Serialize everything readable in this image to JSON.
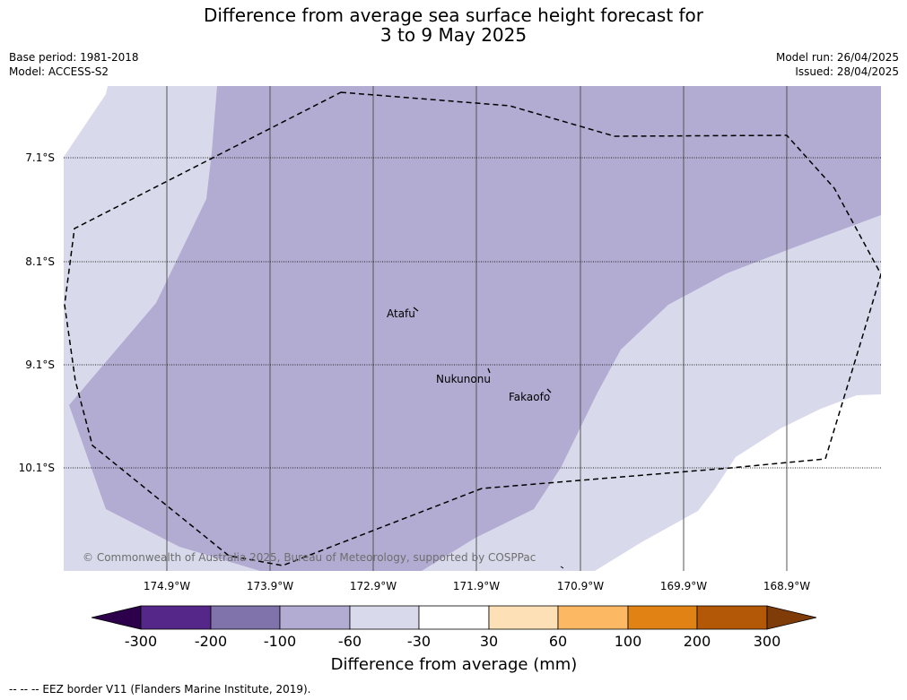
{
  "title": {
    "line1": "Difference from average sea surface height forecast for",
    "line2": "3 to 9 May 2025"
  },
  "meta": {
    "base_period": "Base period: 1981-2018",
    "model": "Model: ACCESS-S2",
    "model_run": "Model run: 26/04/2025",
    "issued": "Issued: 28/04/2025"
  },
  "map": {
    "lat_labels": [
      "7.1°S",
      "8.1°S",
      "9.1°S",
      "10.1°S"
    ],
    "lon_labels": [
      "174.9°W",
      "173.9°W",
      "172.9°W",
      "171.9°W",
      "170.9°W",
      "169.9°W",
      "168.9°W"
    ],
    "places": [
      {
        "name": "Atafu"
      },
      {
        "name": "Nukunonu"
      },
      {
        "name": "Fakaofo"
      }
    ],
    "copyright": "© Commonwealth of Australia 2025, Bureau of Meteorology, supported by COSPPac"
  },
  "colorbar": {
    "label": "Difference from average (mm)",
    "ticks": [
      "-300",
      "-200",
      "-100",
      "-60",
      "-30",
      "30",
      "60",
      "100",
      "200",
      "300"
    ],
    "colors": [
      "#2d004b",
      "#542788",
      "#8073ac",
      "#b2abd2",
      "#d8daeb",
      "#ffffff",
      "#fee0b6",
      "#fdb863",
      "#e08214",
      "#b35806",
      "#7f3b08"
    ]
  },
  "footer": "-- -- -- EEZ border V11 (Flanders Marine Institute, 2019)."
}
